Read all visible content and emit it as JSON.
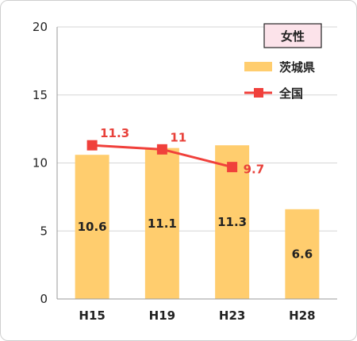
{
  "chart_data": {
    "type": "bar",
    "title": "",
    "badge": "女性",
    "categories": [
      "H15",
      "H19",
      "H23",
      "H28"
    ],
    "ylim": [
      0,
      20
    ],
    "yticks": [
      0,
      5,
      10,
      15,
      20
    ],
    "grid": true,
    "legend_position": "top-right",
    "series": [
      {
        "name": "茨城県",
        "type": "bar",
        "values": [
          10.6,
          11.1,
          11.3,
          6.6
        ],
        "color": "#ffcd6e"
      },
      {
        "name": "全国",
        "type": "line",
        "values": [
          11.3,
          11,
          9.7,
          null
        ],
        "color": "#f0403b"
      }
    ]
  }
}
